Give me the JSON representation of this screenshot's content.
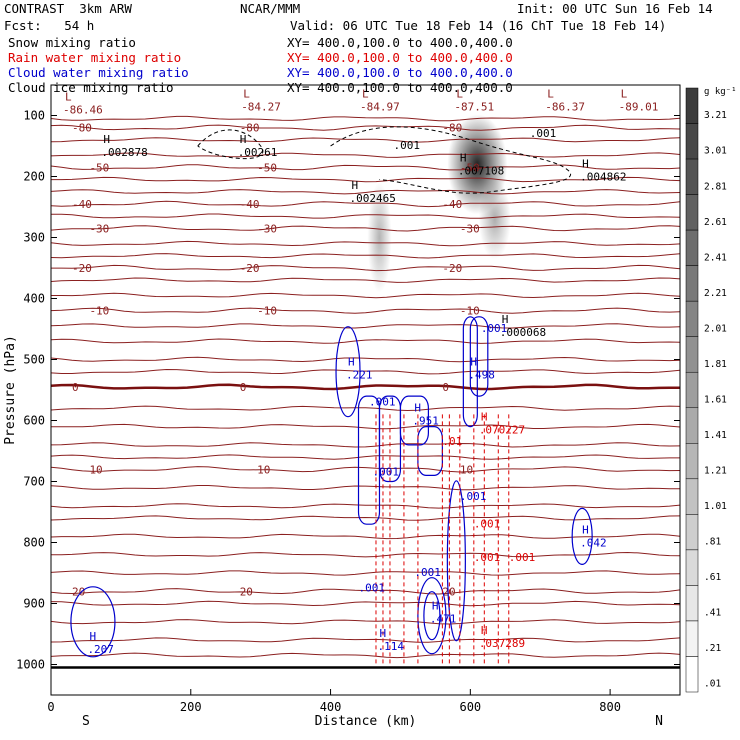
{
  "header": {
    "title": "CONTRAST  3km ARW",
    "fcst": "Fcst:   54 h",
    "center": "NCAR/MMM",
    "init": "Init: 00 UTC Sun 16 Feb 14",
    "valid": "Valid: 06 UTC Tue 18 Feb 14 (16 ChT Tue 18 Feb 14)",
    "rows": [
      {
        "label": "Snow mixing ratio",
        "xy": "XY= 400.0,100.0 to 400.0,400.0",
        "color": "#000000"
      },
      {
        "label": "Rain water mixing ratio",
        "xy": "XY= 400.0,100.0 to 400.0,400.0",
        "color": "#dd0000"
      },
      {
        "label": "Cloud water mixing ratio",
        "xy": "XY= 400.0,100.0 to 400.0,400.0",
        "color": "#0000cc"
      },
      {
        "label": "Cloud ice mixing ratio",
        "xy": "XY= 400.0,100.0 to 400.0,400.0",
        "color": "#000000"
      }
    ]
  },
  "chart_data": {
    "type": "heatmap",
    "xlabel": "Distance (km)",
    "ylabel": "Pressure (hPa)",
    "xlim": [
      0,
      900
    ],
    "ylim": [
      1050,
      50
    ],
    "xticks": [
      0,
      200,
      400,
      600,
      800
    ],
    "yticks": [
      100,
      200,
      300,
      400,
      500,
      600,
      700,
      800,
      900,
      1000
    ],
    "x_end_labels": {
      "left": "S",
      "right": "N"
    },
    "colorbar": {
      "unit": "g kg⁻¹",
      "labels": [
        "3.21",
        "3.01",
        "2.81",
        "2.61",
        "2.41",
        "2.21",
        "2.01",
        "1.81",
        "1.61",
        "1.41",
        "1.21",
        "1.01",
        ".81",
        ".61",
        ".41",
        ".21",
        ".01"
      ]
    },
    "temperature_contours": [
      {
        "p": 120,
        "label": "-80"
      },
      {
        "p": 185,
        "label": "-50"
      },
      {
        "p": 245,
        "label": "-40"
      },
      {
        "p": 285,
        "label": "-30"
      },
      {
        "p": 350,
        "label": "-20"
      },
      {
        "p": 420,
        "label": "-10"
      },
      {
        "p": 545,
        "label": "0"
      },
      {
        "p": 680,
        "label": "10"
      },
      {
        "p": 880,
        "label": "20"
      }
    ],
    "extrema_labels": [
      {
        "type": "L",
        "x": 20,
        "p": 85,
        "value": "-86.46"
      },
      {
        "type": "L",
        "x": 275,
        "p": 80,
        "value": "-84.27"
      },
      {
        "type": "L",
        "x": 445,
        "p": 80,
        "value": "-84.97"
      },
      {
        "type": "L",
        "x": 580,
        "p": 80,
        "value": "-87.51"
      },
      {
        "type": "L",
        "x": 710,
        "p": 80,
        "value": "-86.37"
      },
      {
        "type": "L",
        "x": 815,
        "p": 80,
        "value": "-89.01"
      },
      {
        "type": "H",
        "x": 75,
        "p": 155,
        "value": ".002878",
        "color": "#000000"
      },
      {
        "type": "H",
        "x": 270,
        "p": 155,
        "value": ".00261",
        "color": "#000000"
      },
      {
        "type": "H",
        "x": 585,
        "p": 185,
        "value": ".007108",
        "color": "#000000"
      },
      {
        "type": "H",
        "x": 760,
        "p": 195,
        "value": ".004862",
        "color": "#000000"
      },
      {
        "type": "H",
        "x": 430,
        "p": 230,
        "value": ".002465",
        "color": "#000000"
      },
      {
        "type": "H",
        "x": 645,
        "p": 450,
        "value": ".000068",
        "color": "#000000"
      },
      {
        "type": "H",
        "x": 425,
        "p": 520,
        "value": ".221",
        "color": "#0000cc"
      },
      {
        "type": "H",
        "x": 600,
        "p": 520,
        "value": ".498",
        "color": "#0000cc"
      },
      {
        "type": "H",
        "x": 520,
        "p": 595,
        "value": ".951",
        "color": "#0000cc"
      },
      {
        "type": "H",
        "x": 615,
        "p": 610,
        "value": ".070227",
        "color": "#dd0000"
      },
      {
        "type": "H",
        "x": 760,
        "p": 795,
        "value": ".042",
        "color": "#0000cc"
      },
      {
        "type": "H",
        "x": 545,
        "p": 920,
        "value": ".471",
        "color": "#0000cc"
      },
      {
        "type": "H",
        "x": 470,
        "p": 965,
        "value": ".114",
        "color": "#0000cc"
      },
      {
        "type": "H",
        "x": 615,
        "p": 960,
        "value": ".037289",
        "color": "#dd0000"
      },
      {
        "type": "H",
        "x": 55,
        "p": 970,
        "value": ".207",
        "color": "#0000cc"
      }
    ],
    "snow_contour_labels": [
      {
        "x": 490,
        "p": 155,
        "value": ".001"
      },
      {
        "x": 685,
        "p": 135,
        "value": ".001"
      }
    ],
    "cloud_labels": [
      {
        "x": 455,
        "p": 575,
        "value": ".001"
      },
      {
        "x": 615,
        "p": 455,
        "value": ".001"
      },
      {
        "x": 460,
        "p": 690,
        "value": ".001"
      },
      {
        "x": 585,
        "p": 730,
        "value": ".001"
      },
      {
        "x": 440,
        "p": 880,
        "value": ".001"
      },
      {
        "x": 520,
        "p": 855,
        "value": ".001"
      }
    ],
    "rain_labels": [
      {
        "x": 605,
        "p": 775,
        "value": ".001"
      },
      {
        "x": 605,
        "p": 830,
        "value": ".001"
      },
      {
        "x": 655,
        "p": 830,
        "value": ".001"
      },
      {
        "x": 560,
        "p": 640,
        "value": ".01"
      }
    ]
  }
}
